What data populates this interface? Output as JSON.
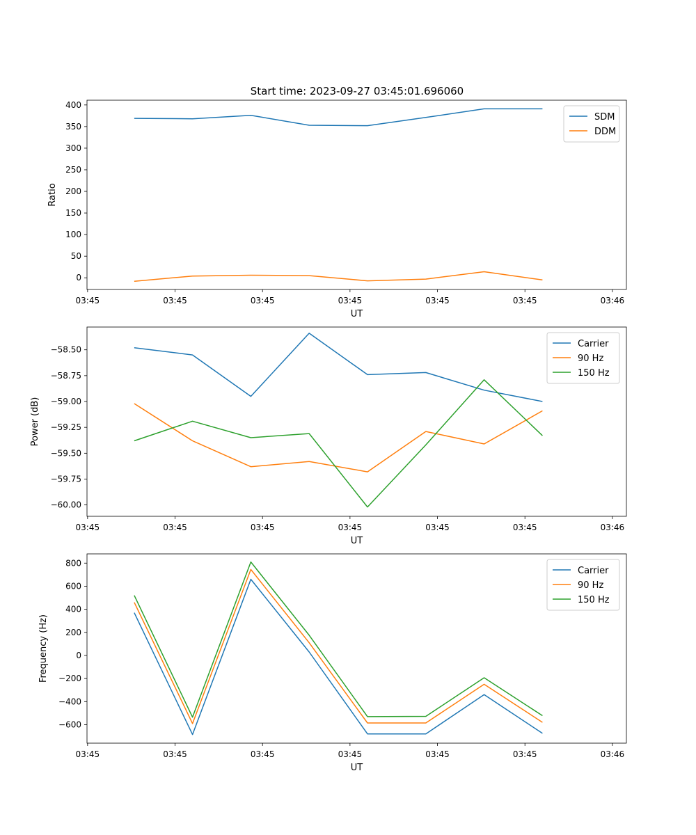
{
  "figure_title": "Start time: 2023-09-27 03:45:01.696060",
  "colors": {
    "c0": "#1f77b4",
    "c1": "#ff7f0e",
    "c2": "#2ca02c"
  },
  "chart_data": [
    {
      "type": "line",
      "title": "Start time: 2023-09-27 03:45:01.696060",
      "xlabel": "UT",
      "ylabel": "Ratio",
      "x": [
        1,
        2,
        3,
        4,
        5,
        6,
        7,
        8
      ],
      "xlim": [
        0.19,
        9.44
      ],
      "x_ticks": [
        0.2,
        1.7,
        3.2,
        4.7,
        6.2,
        7.7,
        9.2
      ],
      "x_tick_labels": [
        "03:45",
        "03:45",
        "03:45",
        "03:45",
        "03:45",
        "03:45",
        "03:46"
      ],
      "ylim": [
        -27,
        411
      ],
      "y_ticks": [
        0,
        50,
        100,
        150,
        200,
        250,
        300,
        350,
        400
      ],
      "y_tick_labels": [
        "0",
        "50",
        "100",
        "150",
        "200",
        "250",
        "300",
        "350",
        "400"
      ],
      "legend_position": "top-right",
      "series": [
        {
          "name": "SDM",
          "color": "#1f77b4",
          "values": [
            369,
            368,
            376,
            353,
            352,
            371,
            391,
            391
          ]
        },
        {
          "name": "DDM",
          "color": "#ff7f0e",
          "values": [
            -8,
            4,
            6,
            5,
            -7,
            -3,
            14,
            -5
          ]
        }
      ]
    },
    {
      "type": "line",
      "title": "",
      "xlabel": "UT",
      "ylabel": "Power (dB)",
      "x": [
        1,
        2,
        3,
        4,
        5,
        6,
        7,
        8
      ],
      "xlim": [
        0.19,
        9.44
      ],
      "x_ticks": [
        0.2,
        1.7,
        3.2,
        4.7,
        6.2,
        7.7,
        9.2
      ],
      "x_tick_labels": [
        "03:45",
        "03:45",
        "03:45",
        "03:45",
        "03:45",
        "03:45",
        "03:46"
      ],
      "ylim": [
        -60.11,
        -58.28
      ],
      "y_ticks": [
        -60.0,
        -59.75,
        -59.5,
        -59.25,
        -59.0,
        -58.75,
        -58.5
      ],
      "y_tick_labels": [
        "−60.00",
        "−59.75",
        "−59.50",
        "−59.25",
        "−59.00",
        "−58.75",
        "−58.50"
      ],
      "legend_position": "top-right",
      "series": [
        {
          "name": "Carrier",
          "color": "#1f77b4",
          "values": [
            -58.48,
            -58.55,
            -58.95,
            -58.34,
            -58.74,
            -58.72,
            -58.89,
            -59.0
          ]
        },
        {
          "name": "90 Hz",
          "color": "#ff7f0e",
          "values": [
            -59.02,
            -59.38,
            -59.63,
            -59.58,
            -59.68,
            -59.29,
            -59.41,
            -59.09
          ]
        },
        {
          "name": "150 Hz",
          "color": "#2ca02c",
          "values": [
            -59.38,
            -59.19,
            -59.35,
            -59.31,
            -60.02,
            -59.42,
            -58.79,
            -59.33
          ]
        }
      ]
    },
    {
      "type": "line",
      "title": "",
      "xlabel": "UT",
      "ylabel": "Frequency (Hz)",
      "x": [
        1,
        2,
        3,
        4,
        5,
        6,
        7,
        8
      ],
      "xlim": [
        0.19,
        9.44
      ],
      "x_ticks": [
        0.2,
        1.7,
        3.2,
        4.7,
        6.2,
        7.7,
        9.2
      ],
      "x_tick_labels": [
        "03:45",
        "03:45",
        "03:45",
        "03:45",
        "03:45",
        "03:45",
        "03:46"
      ],
      "ylim": [
        -760,
        880
      ],
      "y_ticks": [
        -600,
        -400,
        -200,
        0,
        200,
        400,
        600,
        800
      ],
      "y_tick_labels": [
        "−600",
        "−400",
        "−200",
        "0",
        "200",
        "400",
        "600",
        "800"
      ],
      "legend_position": "top-right",
      "series": [
        {
          "name": "Carrier",
          "color": "#1f77b4",
          "values": [
            370,
            -685,
            660,
            30,
            -680,
            -680,
            -340,
            -675
          ]
        },
        {
          "name": "90 Hz",
          "color": "#ff7f0e",
          "values": [
            460,
            -590,
            745,
            110,
            -585,
            -585,
            -250,
            -580
          ]
        },
        {
          "name": "150 Hz",
          "color": "#2ca02c",
          "values": [
            520,
            -535,
            810,
            175,
            -530,
            -528,
            -193,
            -522
          ]
        }
      ]
    }
  ]
}
